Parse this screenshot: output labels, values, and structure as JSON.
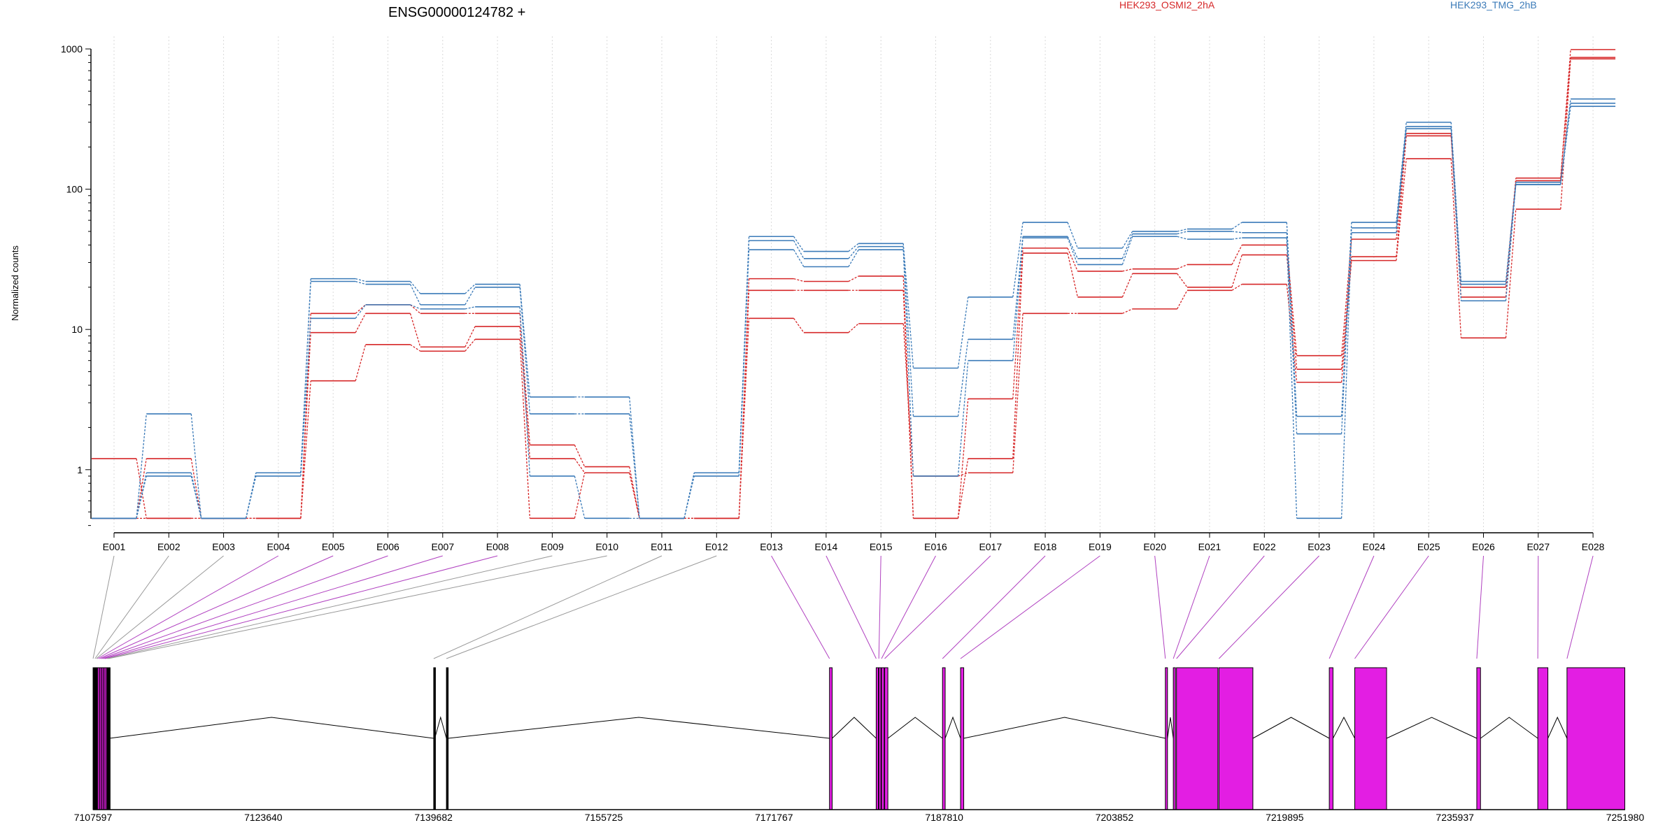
{
  "chart_data": {
    "type": "line",
    "title": "ENSG00000124782 +",
    "ylabel": "Normalized counts",
    "yscale": "log",
    "ylim": [
      0.4,
      1000
    ],
    "yticks": [
      "1",
      "10",
      "100",
      "1000"
    ],
    "legend": {
      "placement": "top",
      "entries": [
        {
          "label": "HEK293_OSMI2_2hA",
          "color": "#d62728"
        },
        {
          "label": "HEK293_TMG_2hB",
          "color": "#3a7ab8"
        }
      ]
    },
    "categories": [
      "E001",
      "E002",
      "E003",
      "E004",
      "E005",
      "E006",
      "E007",
      "E008",
      "E009",
      "E010",
      "E011",
      "E012",
      "E013",
      "E014",
      "E015",
      "E016",
      "E017",
      "E018",
      "E019",
      "E020",
      "E021",
      "E022",
      "E023",
      "E024",
      "E025",
      "E026",
      "E027",
      "E028"
    ],
    "series": [
      {
        "group": "HEK293_OSMI2_2hA",
        "color": "#d62728",
        "values": [
          1.2,
          0.45,
          0.45,
          0.45,
          13,
          15,
          13,
          13,
          1.5,
          1.05,
          0.45,
          0.45,
          23,
          22,
          24,
          0.45,
          3.2,
          38,
          26,
          27,
          29,
          40,
          6.5,
          44,
          250,
          20,
          120,
          990
        ]
      },
      {
        "group": "HEK293_OSMI2_2hA",
        "color": "#d62728",
        "values": [
          0.45,
          1.2,
          0.45,
          0.45,
          9.5,
          13,
          7.5,
          10.5,
          1.2,
          0.95,
          0.45,
          0.45,
          19,
          19,
          19,
          0.45,
          1.2,
          35,
          17,
          25,
          20,
          34,
          5.2,
          33,
          240,
          17,
          115,
          870
        ]
      },
      {
        "group": "HEK293_OSMI2_2hA",
        "color": "#d62728",
        "values": [
          0.45,
          0.45,
          0.45,
          0.45,
          4.3,
          7.8,
          7,
          8.5,
          0.45,
          0.95,
          0.45,
          0.45,
          12,
          9.5,
          11,
          0.9,
          0.95,
          13,
          13,
          14,
          19,
          21,
          4.2,
          31,
          165,
          8.7,
          72,
          850
        ]
      },
      {
        "group": "HEK293_TMG_2hB",
        "color": "#3a7ab8",
        "values": [
          0.45,
          2.5,
          0.45,
          0.95,
          23,
          22,
          18,
          21,
          3.3,
          3.3,
          0.45,
          0.95,
          46,
          36,
          41,
          5.3,
          17,
          58,
          38,
          50,
          52,
          58,
          2.4,
          58,
          300,
          22,
          112,
          440
        ]
      },
      {
        "group": "HEK293_TMG_2hB",
        "color": "#3a7ab8",
        "values": [
          0.45,
          0.95,
          0.45,
          0.95,
          22,
          21,
          15,
          20,
          2.5,
          2.5,
          0.45,
          0.95,
          43,
          32,
          39,
          2.4,
          8.5,
          46,
          32,
          48,
          50,
          49,
          1.8,
          53,
          280,
          21,
          108,
          410
        ]
      },
      {
        "group": "HEK293_TMG_2hB",
        "color": "#3a7ab8",
        "values": [
          0.45,
          0.9,
          0.45,
          0.9,
          12,
          15,
          14,
          14.5,
          0.9,
          0.45,
          0.45,
          0.9,
          37,
          28,
          37,
          0.9,
          6,
          45,
          29,
          46,
          44,
          45,
          0.45,
          49,
          270,
          16,
          108,
          390
        ]
      }
    ],
    "genomic_axis": {
      "ticks": [
        "7107597",
        "7123640",
        "7139682",
        "7155725",
        "7171767",
        "7187810",
        "7203852",
        "7219895",
        "7235937",
        "7251980"
      ],
      "start": 7107597,
      "end": 7251980
    },
    "exons": [
      {
        "id": "E001",
        "start": 7107600,
        "end": 7107750,
        "color": "#000000"
      },
      {
        "id": "E002",
        "start": 7107780,
        "end": 7107880,
        "color": "#000000"
      },
      {
        "id": "E003",
        "start": 7107900,
        "end": 7108000,
        "color": "#000000"
      },
      {
        "id": "E004",
        "start": 7108020,
        "end": 7108180,
        "color": "#e31ee3"
      },
      {
        "id": "E005",
        "start": 7108200,
        "end": 7108360,
        "color": "#e31ee3"
      },
      {
        "id": "E006",
        "start": 7108380,
        "end": 7108540,
        "color": "#e31ee3"
      },
      {
        "id": "E007",
        "start": 7108560,
        "end": 7108700,
        "color": "#e31ee3"
      },
      {
        "id": "E008",
        "start": 7108720,
        "end": 7108870,
        "color": "#e31ee3"
      },
      {
        "id": "E009",
        "start": 7108890,
        "end": 7109020,
        "color": "#000000"
      },
      {
        "id": "E010",
        "start": 7109040,
        "end": 7109140,
        "color": "#000000"
      },
      {
        "id": "E011",
        "start": 7139700,
        "end": 7139800,
        "color": "#000000"
      },
      {
        "id": "E012",
        "start": 7140900,
        "end": 7141050,
        "color": "#000000"
      },
      {
        "id": "E013",
        "start": 7177000,
        "end": 7177250,
        "color": "#e31ee3"
      },
      {
        "id": "E014",
        "start": 7181400,
        "end": 7181600,
        "color": "#e31ee3"
      },
      {
        "id": "E015",
        "start": 7181650,
        "end": 7181850,
        "color": "#e31ee3"
      },
      {
        "id": "E016",
        "start": 7181900,
        "end": 7182150,
        "color": "#e31ee3"
      },
      {
        "id": "E017",
        "start": 7182200,
        "end": 7182500,
        "color": "#e31ee3"
      },
      {
        "id": "E018",
        "start": 7187650,
        "end": 7187900,
        "color": "#e31ee3"
      },
      {
        "id": "E019",
        "start": 7189350,
        "end": 7189650,
        "color": "#e31ee3"
      },
      {
        "id": "E020",
        "start": 7208650,
        "end": 7208850,
        "color": "#e31ee3"
      },
      {
        "id": "E021",
        "start": 7209400,
        "end": 7209600,
        "color": "#e31ee3"
      },
      {
        "id": "E022",
        "start": 7209700,
        "end": 7213600,
        "color": "#e31ee3"
      },
      {
        "id": "E023",
        "start": 7213700,
        "end": 7216900,
        "color": "#e31ee3"
      },
      {
        "id": "E024",
        "start": 7224100,
        "end": 7224450,
        "color": "#e31ee3"
      },
      {
        "id": "E025",
        "start": 7226500,
        "end": 7229500,
        "color": "#e31ee3"
      },
      {
        "id": "E026",
        "start": 7238000,
        "end": 7238350,
        "color": "#e31ee3"
      },
      {
        "id": "E027",
        "start": 7243750,
        "end": 7244700,
        "color": "#e31ee3"
      },
      {
        "id": "E028",
        "start": 7246500,
        "end": 7251950,
        "color": "#e31ee3"
      }
    ]
  }
}
